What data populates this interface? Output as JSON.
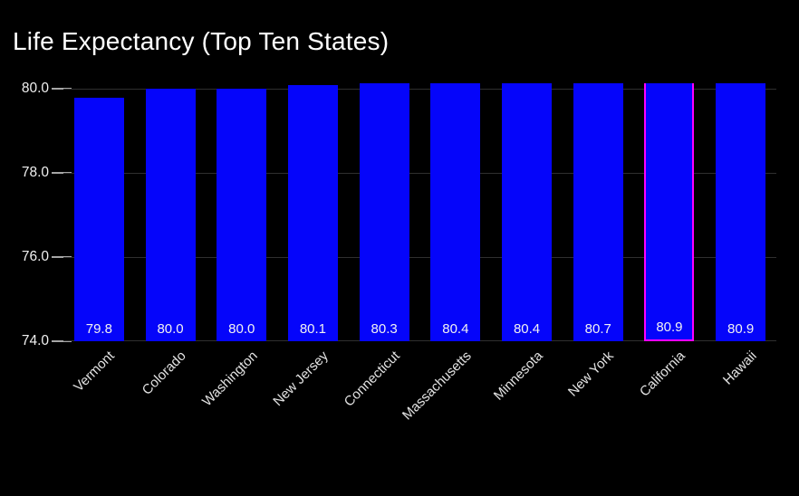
{
  "title": "Life Expectancy (Top Ten States)",
  "colors": {
    "background": "#000000",
    "bar": "#0505fa",
    "highlight_border": "#ff00ff",
    "gridline": "#2f2f2f",
    "tick_mark": "#a6a6a6",
    "title_text": "#ffffff",
    "y_axis_text": "#f0f0f0",
    "x_axis_text": "#e3e3e3",
    "bar_label_text": "#f2f2f2"
  },
  "chart_data": {
    "type": "bar",
    "title": "Life Expectancy (Top Ten States)",
    "categories": [
      "Vermont",
      "Colorado",
      "Washington",
      "New Jersey",
      "Connecticut",
      "Massachusetts",
      "Minnesota",
      "New York",
      "California",
      "Hawaii"
    ],
    "values": [
      79.8,
      80.0,
      80.0,
      80.1,
      80.3,
      80.4,
      80.4,
      80.7,
      80.9,
      80.9
    ],
    "value_labels": [
      "79.8",
      "80.0",
      "80.0",
      "80.1",
      "80.3",
      "80.4",
      "80.4",
      "80.7",
      "80.9",
      "80.9"
    ],
    "xlabel": "",
    "ylabel": "",
    "ylim": [
      74.0,
      80.135
    ],
    "yticks": [
      80.0,
      78.0,
      76.0,
      74.0
    ],
    "ytick_labels": [
      "80.0",
      "78.0",
      "76.0",
      "74.0"
    ],
    "grid": true,
    "legend": false,
    "x_tick_rotation_deg": 45,
    "bars_clipped_at_top": true,
    "highlighted_category": "California",
    "highlight_index": 8
  }
}
